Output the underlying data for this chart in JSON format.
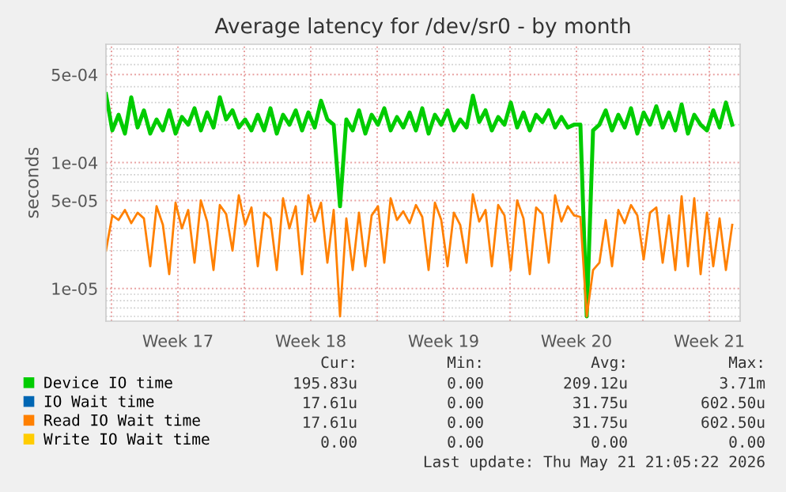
{
  "chart_data": {
    "type": "line",
    "title": "Average latency for /dev/sr0 - by month",
    "ylabel": "seconds",
    "x": [
      "2026-04-18T00:00",
      "2026-04-18T08:00",
      "2026-04-18T16:00",
      "2026-04-19T00:00",
      "2026-04-19T08:00",
      "2026-04-19T16:00",
      "2026-04-20T00:00",
      "2026-04-20T08:00",
      "2026-04-20T16:00",
      "2026-04-21T00:00",
      "2026-04-21T08:00",
      "2026-04-21T16:00",
      "2026-04-22T00:00",
      "2026-04-22T08:00",
      "2026-04-22T16:00",
      "2026-04-23T00:00",
      "2026-04-23T08:00",
      "2026-04-23T16:00",
      "2026-04-24T00:00",
      "2026-04-24T08:00",
      "2026-04-24T16:00",
      "2026-04-25T00:00",
      "2026-04-25T08:00",
      "2026-04-25T16:00",
      "2026-04-26T00:00",
      "2026-04-26T08:00",
      "2026-04-26T16:00",
      "2026-04-27T00:00",
      "2026-04-27T08:00",
      "2026-04-27T16:00",
      "2026-04-28T00:00",
      "2026-04-28T08:00",
      "2026-04-28T16:00",
      "2026-04-29T00:00",
      "2026-04-29T08:00",
      "2026-04-29T16:00",
      "2026-04-30T00:00",
      "2026-04-30T08:00",
      "2026-04-30T16:00",
      "2026-05-01T00:00",
      "2026-05-01T08:00",
      "2026-05-01T16:00",
      "2026-05-02T00:00",
      "2026-05-02T08:00",
      "2026-05-02T16:00",
      "2026-05-03T00:00",
      "2026-05-03T08:00",
      "2026-05-03T16:00",
      "2026-05-04T00:00",
      "2026-05-04T08:00",
      "2026-05-04T16:00",
      "2026-05-05T00:00",
      "2026-05-05T08:00",
      "2026-05-05T16:00",
      "2026-05-06T00:00",
      "2026-05-06T08:00",
      "2026-05-06T16:00",
      "2026-05-07T00:00",
      "2026-05-07T08:00",
      "2026-05-07T16:00",
      "2026-05-08T00:00",
      "2026-05-08T08:00",
      "2026-05-08T16:00",
      "2026-05-09T00:00",
      "2026-05-09T08:00",
      "2026-05-09T16:00",
      "2026-05-10T00:00",
      "2026-05-10T08:00",
      "2026-05-10T16:00",
      "2026-05-11T00:00",
      "2026-05-11T08:00",
      "2026-05-11T16:00",
      "2026-05-12T00:00",
      "2026-05-12T08:00",
      "2026-05-12T16:00",
      "2026-05-13T00:00",
      "2026-05-13T08:00",
      "2026-05-13T16:00",
      "2026-05-14T00:00",
      "2026-05-14T08:00",
      "2026-05-14T16:00",
      "2026-05-15T00:00",
      "2026-05-15T08:00",
      "2026-05-15T16:00",
      "2026-05-16T00:00",
      "2026-05-16T08:00",
      "2026-05-16T16:00",
      "2026-05-17T00:00",
      "2026-05-17T08:00",
      "2026-05-17T16:00",
      "2026-05-18T00:00",
      "2026-05-18T08:00",
      "2026-05-18T16:00",
      "2026-05-19T00:00",
      "2026-05-19T08:00",
      "2026-05-19T16:00",
      "2026-05-20T00:00",
      "2026-05-20T08:00",
      "2026-05-20T16:00",
      "2026-05-21T00:00"
    ],
    "series": [
      {
        "name": "Device IO time",
        "color": "#00cc00",
        "values": [
          0.00035,
          0.00018,
          0.00024,
          0.00017,
          0.00033,
          0.00019,
          0.00026,
          0.00017,
          0.00022,
          0.00018,
          0.00026,
          0.00017,
          0.00023,
          0.0002,
          0.00027,
          0.00018,
          0.00025,
          0.00019,
          0.00033,
          0.00022,
          0.00026,
          0.00019,
          0.00022,
          0.00018,
          0.00024,
          0.00018,
          0.00027,
          0.00017,
          0.00024,
          0.0002,
          0.00026,
          0.00018,
          0.00025,
          0.00019,
          0.00031,
          0.00022,
          0.0002,
          4.5e-05,
          0.00022,
          0.00018,
          0.00026,
          0.00017,
          0.00024,
          0.0002,
          0.00027,
          0.00018,
          0.00023,
          0.00019,
          0.00025,
          0.00018,
          0.00027,
          0.00017,
          0.00024,
          0.0002,
          0.00026,
          0.00018,
          0.00022,
          0.00019,
          0.00034,
          0.00021,
          0.00026,
          0.00018,
          0.00023,
          0.0002,
          0.0003,
          0.00019,
          0.00025,
          0.00018,
          0.00024,
          0.00021,
          0.00026,
          0.00019,
          0.00023,
          0.00019,
          0.0002,
          0.0002,
          6e-06,
          0.00018,
          0.0002,
          0.00026,
          0.00018,
          0.00024,
          0.00019,
          0.00027,
          0.00017,
          0.00025,
          0.0002,
          0.00028,
          0.00019,
          0.00025,
          0.00018,
          0.00029,
          0.00017,
          0.00024,
          0.0002,
          0.00018,
          0.00026,
          0.00019,
          0.0003,
          0.0002
        ]
      },
      {
        "name": "IO Wait time",
        "color": "#0066b3",
        "values": [
          null,
          null,
          null,
          null,
          null,
          null,
          null,
          null,
          null,
          null,
          null,
          null,
          null,
          null,
          null,
          null,
          null,
          null,
          null,
          null,
          null,
          null,
          null,
          null,
          null,
          null,
          null,
          null,
          null,
          null,
          null,
          null,
          null,
          null,
          null,
          null,
          null,
          null,
          null,
          null,
          null,
          null,
          null,
          null,
          null,
          null,
          null,
          null,
          null,
          null,
          null,
          null,
          null,
          null,
          null,
          null,
          null,
          null,
          null,
          null,
          null,
          null,
          null,
          null,
          null,
          null,
          null,
          null,
          null,
          null,
          null,
          null,
          null,
          null,
          null,
          null,
          null,
          null,
          null,
          null,
          null,
          null,
          null,
          null,
          null,
          null,
          null,
          null,
          null,
          null,
          null,
          null,
          null,
          null,
          null,
          null,
          null,
          null,
          null,
          null
        ]
      },
      {
        "name": "Read IO Wait time",
        "color": "#ff8000",
        "values": [
          2e-05,
          3.8e-05,
          3.5e-05,
          4.2e-05,
          3.3e-05,
          4e-05,
          3.6e-05,
          1.5e-05,
          4.5e-05,
          3.2e-05,
          1.3e-05,
          4.8e-05,
          3e-05,
          4.2e-05,
          1.6e-05,
          5e-05,
          3.4e-05,
          1.4e-05,
          4.6e-05,
          3.9e-05,
          2e-05,
          5.5e-05,
          3.2e-05,
          4.4e-05,
          1.5e-05,
          4e-05,
          3.6e-05,
          1.4e-05,
          5.2e-05,
          3e-05,
          4.5e-05,
          1.3e-05,
          5.5e-05,
          3.4e-05,
          4.8e-05,
          1.6e-05,
          4.2e-05,
          6e-06,
          3.6e-05,
          1.4e-05,
          4e-05,
          1.5e-05,
          3.8e-05,
          4.5e-05,
          1.6e-05,
          5.2e-05,
          3.5e-05,
          4.1e-05,
          3.3e-05,
          4.6e-05,
          3.7e-05,
          1.4e-05,
          4.8e-05,
          3.5e-05,
          1.5e-05,
          4e-05,
          3.2e-05,
          1.6e-05,
          5.6e-05,
          3.4e-05,
          4.2e-05,
          1.5e-05,
          4.6e-05,
          3.8e-05,
          1.4e-05,
          5e-05,
          3.6e-05,
          1.3e-05,
          4.4e-05,
          3.9e-05,
          1.6e-05,
          5.5e-05,
          3.4e-05,
          4.5e-05,
          3.8e-05,
          3.7e-05,
          6e-06,
          1.4e-05,
          1.6e-05,
          3.5e-05,
          1.5e-05,
          4.2e-05,
          3.3e-05,
          4.6e-05,
          3.8e-05,
          1.7e-05,
          4e-05,
          4.4e-05,
          1.6e-05,
          3.8e-05,
          1.4e-05,
          5.4e-05,
          1.5e-05,
          5.2e-05,
          1.3e-05,
          4e-05,
          1.5e-05,
          3.6e-05,
          1.4e-05,
          3.2e-05
        ]
      },
      {
        "name": "Write IO Wait time",
        "color": "#ffcc00",
        "values": [
          null,
          null,
          null,
          null,
          null,
          null,
          null,
          null,
          null,
          null,
          null,
          null,
          null,
          null,
          null,
          null,
          null,
          null,
          null,
          null,
          null,
          null,
          null,
          null,
          null,
          null,
          null,
          null,
          null,
          null,
          null,
          null,
          null,
          null,
          null,
          null,
          null,
          null,
          null,
          null,
          null,
          null,
          null,
          null,
          null,
          null,
          null,
          null,
          null,
          null,
          null,
          null,
          null,
          null,
          null,
          null,
          null,
          null,
          null,
          null,
          null,
          null,
          null,
          null,
          null,
          null,
          null,
          null,
          null,
          null,
          null,
          null,
          null,
          null,
          null,
          null,
          null,
          null,
          null,
          null,
          null,
          null,
          null,
          null,
          null,
          null,
          null,
          null,
          null,
          null,
          null,
          null,
          null,
          null,
          null,
          null,
          null,
          null,
          null,
          null
        ]
      }
    ],
    "log": "y",
    "xlim": [
      "2026-04-18T00:00",
      "2026-05-21T10:00"
    ],
    "xticks": [
      {
        "value": "2026-04-18T07:00",
        "label": null
      },
      {
        "value": "2026-04-21T19:00",
        "label": "Week 17"
      },
      {
        "value": "2026-04-25T07:00",
        "label": null
      },
      {
        "value": "2026-04-28T19:00",
        "label": "Week 18"
      },
      {
        "value": "2026-05-02T07:00",
        "label": null
      },
      {
        "value": "2026-05-05T19:00",
        "label": "Week 19"
      },
      {
        "value": "2026-05-09T07:00",
        "label": null
      },
      {
        "value": "2026-05-12T19:00",
        "label": "Week 20"
      },
      {
        "value": "2026-05-16T07:00",
        "label": null
      },
      {
        "value": "2026-05-19T19:00",
        "label": "Week 21"
      }
    ],
    "ylim": [
      5.5e-06,
      0.00087
    ],
    "yticks": [
      {
        "value": 1e-05,
        "label": "1e-05"
      },
      {
        "value": 5e-05,
        "label": "5e-05"
      },
      {
        "value": 0.0001,
        "label": "1e-04"
      },
      {
        "value": 0.0005,
        "label": "5e-04"
      }
    ],
    "grid": true,
    "legend": "bottom",
    "annotations": [
      "Cur:",
      "Min:",
      "Avg:",
      "Max:",
      "195.83u",
      "0.00",
      "209.12u",
      "3.71m",
      "17.61u",
      "0.00",
      "31.75u",
      "602.50u",
      "17.61u",
      "0.00",
      "31.75u",
      "602.50u",
      "0.00",
      "0.00",
      "0.00",
      "0.00",
      "Last update: Thu May 21 21:05:22 2026"
    ]
  }
}
